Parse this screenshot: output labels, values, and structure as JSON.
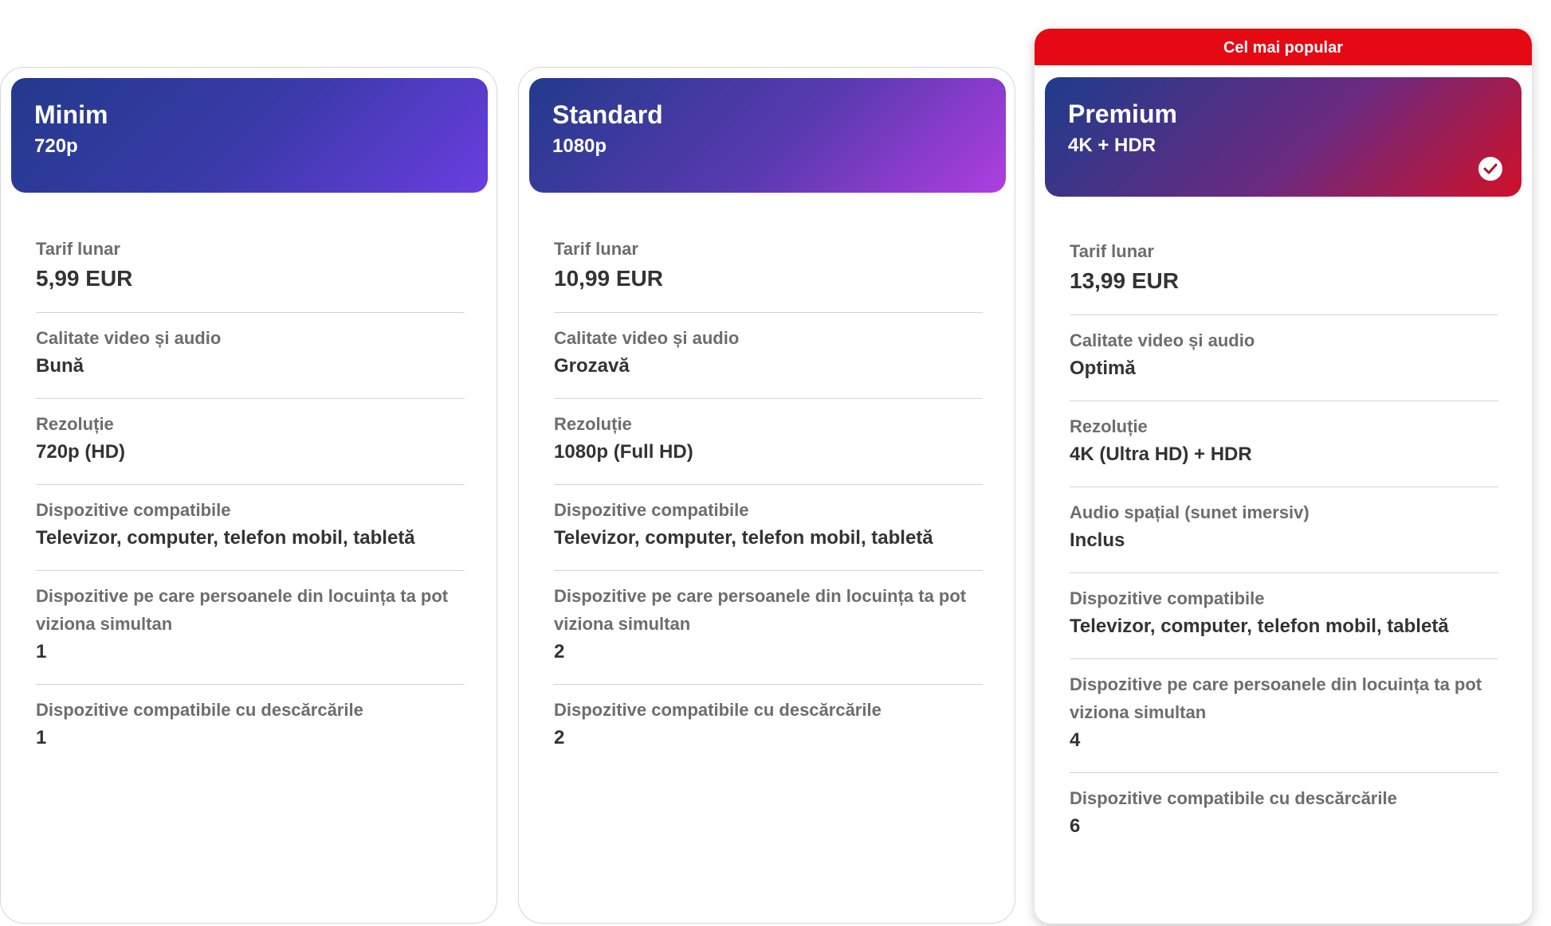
{
  "popular_badge": "Cel mai popular",
  "plans": [
    {
      "name": "Minim",
      "resolution_tag": "720p",
      "features": [
        {
          "label": "Tarif lunar",
          "value": "5,99 EUR"
        },
        {
          "label": "Calitate video și audio",
          "value": "Bună"
        },
        {
          "label": "Rezoluție",
          "value": "720p (HD)"
        },
        {
          "label": "Dispozitive compatibile",
          "value": "Televizor, computer, telefon mobil, tabletă"
        },
        {
          "label": "Dispozitive pe care persoanele din locuința ta pot viziona simultan",
          "value": "1"
        },
        {
          "label": "Dispozitive compatibile cu descărcările",
          "value": "1"
        }
      ]
    },
    {
      "name": "Standard",
      "resolution_tag": "1080p",
      "features": [
        {
          "label": "Tarif lunar",
          "value": "10,99 EUR"
        },
        {
          "label": "Calitate video și audio",
          "value": "Grozavă"
        },
        {
          "label": "Rezoluție",
          "value": "1080p (Full HD)"
        },
        {
          "label": "Dispozitive compatibile",
          "value": "Televizor, computer, telefon mobil, tabletă"
        },
        {
          "label": "Dispozitive pe care persoanele din locuința ta pot viziona simultan",
          "value": "2"
        },
        {
          "label": "Dispozitive compatibile cu descărcările",
          "value": "2"
        }
      ]
    },
    {
      "name": "Premium",
      "resolution_tag": "4K + HDR",
      "selected": true,
      "features": [
        {
          "label": "Tarif lunar",
          "value": "13,99 EUR"
        },
        {
          "label": "Calitate video și audio",
          "value": "Optimă"
        },
        {
          "label": "Rezoluție",
          "value": "4K (Ultra HD) + HDR"
        },
        {
          "label": "Audio spațial (sunet imersiv)",
          "value": "Inclus"
        },
        {
          "label": "Dispozitive compatibile",
          "value": "Televizor, computer, telefon mobil, tabletă"
        },
        {
          "label": "Dispozitive pe care persoanele din locuința ta pot viziona simultan",
          "value": "4"
        },
        {
          "label": "Dispozitive compatibile cu descărcările",
          "value": "6"
        }
      ]
    }
  ],
  "colors": {
    "accent_red": "#e50914",
    "label_gray": "#6d6d6e",
    "value_dark": "#333333"
  },
  "icons": {
    "selected": "check-circle-icon"
  }
}
